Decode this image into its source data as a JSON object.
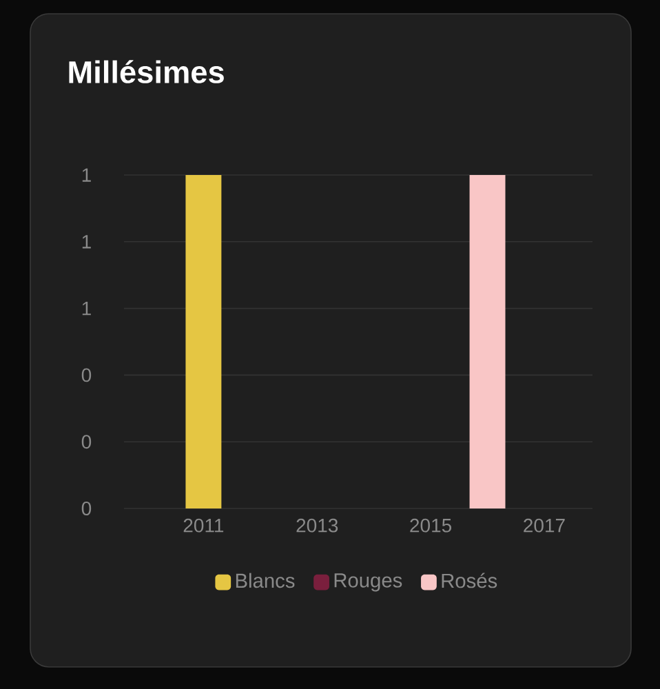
{
  "chart_data": {
    "type": "bar",
    "title": "Millésimes",
    "x": [
      2011,
      2016
    ],
    "series": [
      {
        "name": "Blancs",
        "color": "#e5c643",
        "values": [
          1,
          null
        ]
      },
      {
        "name": "Rouges",
        "color": "#7a1f3d",
        "values": [
          null,
          null
        ]
      },
      {
        "name": "Rosés",
        "color": "#f9c6c6",
        "values": [
          null,
          1
        ]
      }
    ],
    "xlim": [
      2009.6,
      2017.85
    ],
    "xticks": [
      2011,
      2013,
      2015,
      2017
    ],
    "ylim": [
      0,
      1
    ],
    "yticks": [
      {
        "value": 0,
        "label": "0"
      },
      {
        "value": 0.2,
        "label": "0"
      },
      {
        "value": 0.4,
        "label": "0"
      },
      {
        "value": 0.6,
        "label": "1"
      },
      {
        "value": 0.8,
        "label": "1"
      },
      {
        "value": 1,
        "label": "1"
      }
    ],
    "grid": "y",
    "legend": "bottom"
  }
}
